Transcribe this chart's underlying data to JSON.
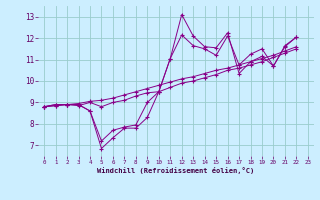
{
  "xlabel": "Windchill (Refroidissement éolien,°C)",
  "xlim": [
    -0.5,
    23.5
  ],
  "ylim": [
    6.5,
    13.5
  ],
  "xticks": [
    0,
    1,
    2,
    3,
    4,
    5,
    6,
    7,
    8,
    9,
    10,
    11,
    12,
    13,
    14,
    15,
    16,
    17,
    18,
    19,
    20,
    21,
    22,
    23
  ],
  "yticks": [
    7,
    8,
    9,
    10,
    11,
    12,
    13
  ],
  "bg_color": "#cceeff",
  "line_color": "#880088",
  "grid_color": "#99cccc",
  "series": [
    [
      8.8,
      8.9,
      8.9,
      8.9,
      8.6,
      6.85,
      7.35,
      7.8,
      7.8,
      8.3,
      9.5,
      11.05,
      13.1,
      12.1,
      11.6,
      11.55,
      12.25,
      10.35,
      10.9,
      11.15,
      10.7,
      11.6,
      12.05
    ],
    [
      8.8,
      8.9,
      8.9,
      8.9,
      8.6,
      7.2,
      7.7,
      7.85,
      7.95,
      9.0,
      9.5,
      11.05,
      12.15,
      11.65,
      11.5,
      11.2,
      12.1,
      10.75,
      11.25,
      11.5,
      10.7,
      11.65,
      12.05
    ],
    [
      8.8,
      8.85,
      8.9,
      8.85,
      9.0,
      8.8,
      9.0,
      9.1,
      9.3,
      9.45,
      9.5,
      9.7,
      9.9,
      10.0,
      10.15,
      10.3,
      10.5,
      10.6,
      10.75,
      10.9,
      11.1,
      11.3,
      11.5
    ],
    [
      8.8,
      8.85,
      8.9,
      8.95,
      9.05,
      9.1,
      9.2,
      9.35,
      9.5,
      9.65,
      9.8,
      9.95,
      10.1,
      10.2,
      10.35,
      10.5,
      10.6,
      10.75,
      10.9,
      11.05,
      11.2,
      11.4,
      11.6
    ]
  ]
}
